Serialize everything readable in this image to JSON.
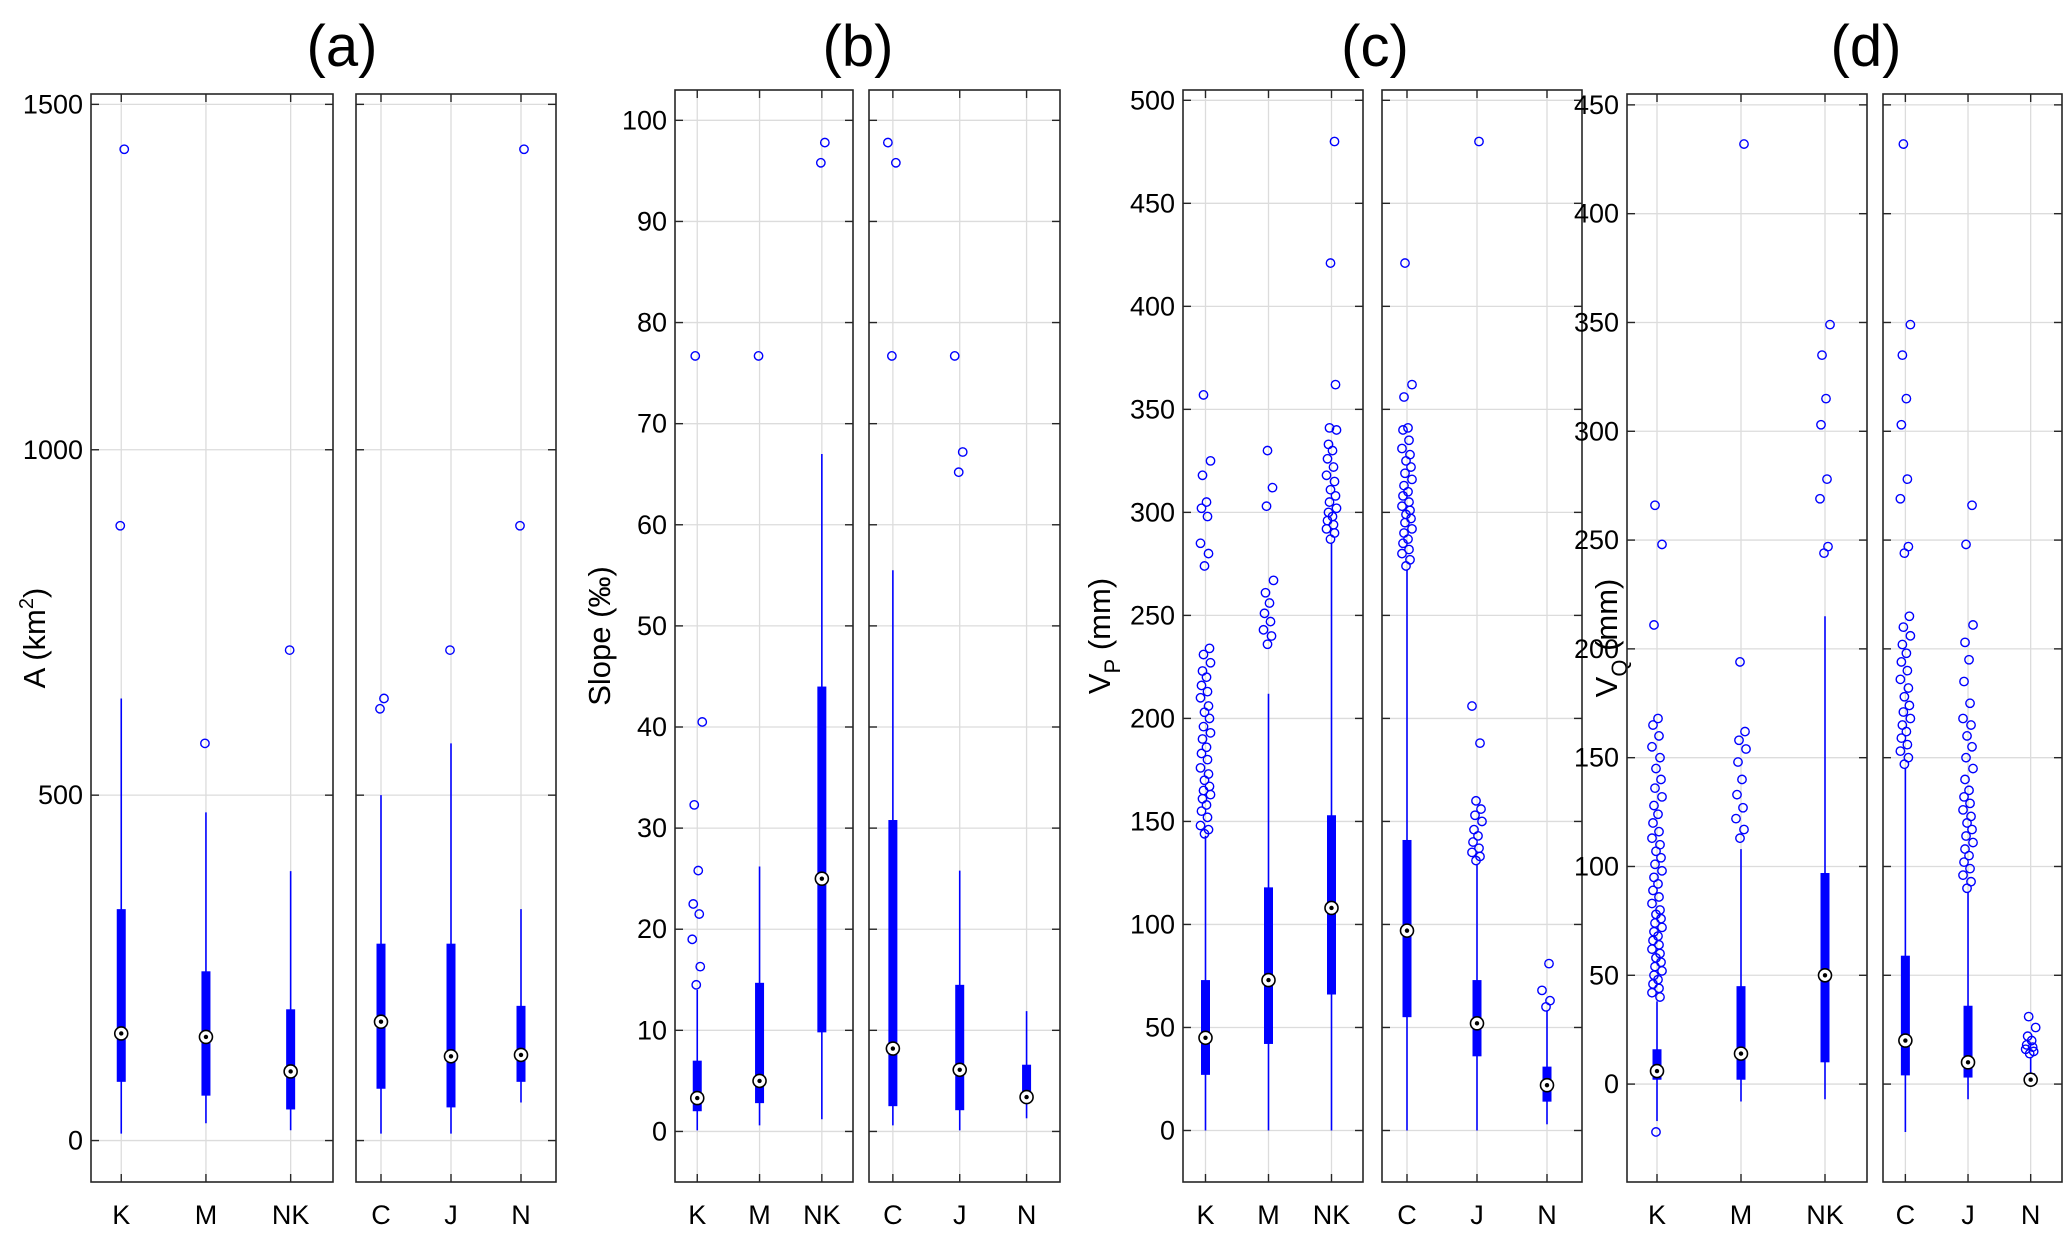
{
  "chart_data": [
    {
      "type": "box",
      "title": "(a)",
      "ylabel": {
        "main": "A (km",
        "sup": "2",
        "end": ")"
      },
      "ylim": [
        -60,
        1515
      ],
      "yticks": [
        0,
        500,
        1000,
        1500
      ],
      "grid": true,
      "color": "#0000ff",
      "groups": [
        {
          "categories": [
            "K",
            "M",
            "NK"
          ],
          "boxes": [
            {
              "q1": 85,
              "median": 155,
              "q3": 335,
              "whisker_low": 10,
              "whisker_high": 640,
              "outliers": [
                890,
                1435
              ]
            },
            {
              "q1": 65,
              "median": 150,
              "q3": 245,
              "whisker_low": 25,
              "whisker_high": 475,
              "outliers": [
                575
              ]
            },
            {
              "q1": 45,
              "median": 100,
              "q3": 190,
              "whisker_low": 15,
              "whisker_high": 390,
              "outliers": [
                710
              ]
            }
          ]
        },
        {
          "categories": [
            "C",
            "J",
            "N"
          ],
          "boxes": [
            {
              "q1": 75,
              "median": 172,
              "q3": 285,
              "whisker_low": 10,
              "whisker_high": 500,
              "outliers": [
                625,
                640
              ]
            },
            {
              "q1": 48,
              "median": 122,
              "q3": 285,
              "whisker_low": 10,
              "whisker_high": 575,
              "outliers": [
                710
              ]
            },
            {
              "q1": 85,
              "median": 124,
              "q3": 195,
              "whisker_low": 55,
              "whisker_high": 335,
              "outliers": [
                890,
                1435
              ]
            }
          ]
        }
      ]
    },
    {
      "type": "box",
      "title": "(b)",
      "ylabel": {
        "main": "Slope (‰)"
      },
      "ylim": [
        -5,
        103
      ],
      "yticks": [
        0,
        10,
        20,
        30,
        40,
        50,
        60,
        70,
        80,
        90,
        100
      ],
      "grid": true,
      "color": "#0000ff",
      "groups": [
        {
          "categories": [
            "K",
            "M",
            "NK"
          ],
          "boxes": [
            {
              "q1": 2,
              "median": 3.3,
              "q3": 7,
              "whisker_low": 0.1,
              "whisker_high": 14,
              "outliers": [
                14.5,
                16.3,
                19,
                21.5,
                22.5,
                25.8,
                32.3,
                40.5,
                76.7
              ]
            },
            {
              "q1": 2.8,
              "median": 5,
              "q3": 14.7,
              "whisker_low": 0.6,
              "whisker_high": 26.2,
              "outliers": [
                76.7
              ]
            },
            {
              "q1": 9.8,
              "median": 25,
              "q3": 44,
              "whisker_low": 1.2,
              "whisker_high": 67,
              "outliers": [
                95.8,
                97.8
              ]
            }
          ]
        },
        {
          "categories": [
            "C",
            "J",
            "N"
          ],
          "boxes": [
            {
              "q1": 2.5,
              "median": 8.2,
              "q3": 30.8,
              "whisker_low": 0.6,
              "whisker_high": 55.5,
              "outliers": [
                76.7,
                95.8,
                97.8
              ]
            },
            {
              "q1": 2.1,
              "median": 6.1,
              "q3": 14.5,
              "whisker_low": 0.1,
              "whisker_high": 25.8,
              "outliers": [
                65.2,
                67.2,
                76.7
              ]
            },
            {
              "q1": 2.9,
              "median": 3.4,
              "q3": 6.6,
              "whisker_low": 1.3,
              "whisker_high": 11.9,
              "outliers": []
            }
          ]
        }
      ]
    },
    {
      "type": "box",
      "title": "(c)",
      "ylabel": {
        "main": "V",
        "sub": "P",
        "end": " (mm)"
      },
      "ylim": [
        -25,
        505
      ],
      "yticks": [
        0,
        50,
        100,
        150,
        200,
        250,
        300,
        350,
        400,
        450,
        500
      ],
      "grid": true,
      "color": "#0000ff",
      "groups": [
        {
          "categories": [
            "K",
            "M",
            "NK"
          ],
          "boxes": [
            {
              "q1": 27,
              "median": 45,
              "q3": 73,
              "whisker_low": 0,
              "whisker_high": 143,
              "outliers": [
                144,
                146,
                148,
                152,
                155,
                158,
                161,
                163,
                165,
                167,
                170,
                173,
                176,
                180,
                183,
                186,
                190,
                193,
                196,
                200,
                203,
                206,
                210,
                213,
                216,
                220,
                223,
                227,
                231,
                234,
                274,
                280,
                285,
                298,
                302,
                305,
                318,
                325,
                357
              ]
            },
            {
              "q1": 42,
              "median": 73,
              "q3": 118,
              "whisker_low": 0,
              "whisker_high": 212,
              "outliers": [
                236,
                240,
                243,
                247,
                251,
                256,
                261,
                267,
                303,
                312,
                330
              ]
            },
            {
              "q1": 66,
              "median": 108,
              "q3": 153,
              "whisker_low": 0,
              "whisker_high": 285,
              "outliers": [
                287,
                290,
                292,
                294,
                296,
                298,
                300,
                302,
                305,
                308,
                311,
                315,
                318,
                322,
                326,
                330,
                333,
                340,
                341,
                362,
                421,
                480
              ]
            }
          ]
        },
        {
          "categories": [
            "C",
            "J",
            "N"
          ],
          "boxes": [
            {
              "q1": 55,
              "median": 97,
              "q3": 141,
              "whisker_low": 0,
              "whisker_high": 272,
              "outliers": [
                274,
                277,
                280,
                282,
                285,
                287,
                290,
                292,
                295,
                297,
                299,
                301,
                303,
                305,
                308,
                310,
                313,
                316,
                319,
                322,
                325,
                328,
                331,
                335,
                340,
                341,
                356,
                362,
                421
              ]
            },
            {
              "q1": 36,
              "median": 52,
              "q3": 73,
              "whisker_low": 0,
              "whisker_high": 129,
              "outliers": [
                131,
                133,
                135,
                137,
                140,
                143,
                146,
                150,
                153,
                156,
                160,
                188,
                206,
                480
              ]
            },
            {
              "q1": 14,
              "median": 22,
              "q3": 31,
              "whisker_low": 3,
              "whisker_high": 58,
              "outliers": [
                60,
                63,
                68,
                81
              ]
            }
          ]
        }
      ]
    },
    {
      "type": "box",
      "title": "(d)",
      "ylabel": {
        "main": "V",
        "sub": "Q",
        "end": " (mm)"
      },
      "ylim": [
        -45,
        455
      ],
      "yticks": [
        0,
        50,
        100,
        150,
        200,
        250,
        300,
        350,
        400,
        450
      ],
      "grid": true,
      "color": "#0000ff",
      "groups": [
        {
          "categories": [
            "K",
            "M",
            "NK"
          ],
          "boxes": [
            {
              "q1": 2,
              "median": 6,
              "q3": 16,
              "whisker_low": -17,
              "whisker_high": 38,
              "outliers": [
                -22,
                40,
                42,
                44,
                46,
                48,
                50,
                52,
                54,
                56,
                58,
                60,
                62,
                64,
                66,
                68,
                70,
                72,
                74,
                76,
                78,
                80,
                83,
                86,
                89,
                92,
                95,
                98,
                101,
                104,
                107,
                110,
                113,
                116,
                120,
                124,
                128,
                132,
                136,
                140,
                145,
                150,
                155,
                160,
                165,
                168,
                211,
                248,
                266
              ]
            },
            {
              "q1": 2,
              "median": 14,
              "q3": 45,
              "whisker_low": -8,
              "whisker_high": 108,
              "outliers": [
                113,
                117,
                122,
                127,
                133,
                140,
                148,
                154,
                158,
                162,
                194,
                432
              ]
            },
            {
              "q1": 10,
              "median": 50,
              "q3": 97,
              "whisker_low": -7,
              "whisker_high": 215,
              "outliers": [
                244,
                247,
                269,
                278,
                303,
                315,
                335,
                349
              ]
            }
          ]
        },
        {
          "categories": [
            "C",
            "J",
            "N"
          ],
          "boxes": [
            {
              "q1": 4,
              "median": 20,
              "q3": 59,
              "whisker_low": -22,
              "whisker_high": 145,
              "outliers": [
                147,
                150,
                153,
                156,
                159,
                162,
                165,
                168,
                171,
                174,
                178,
                182,
                186,
                190,
                194,
                198,
                202,
                206,
                210,
                215,
                244,
                247,
                269,
                278,
                303,
                315,
                335,
                349,
                432
              ]
            },
            {
              "q1": 3,
              "median": 10,
              "q3": 36,
              "whisker_low": -7,
              "whisker_high": 88,
              "outliers": [
                90,
                93,
                96,
                99,
                102,
                105,
                108,
                111,
                114,
                117,
                120,
                123,
                126,
                129,
                132,
                135,
                140,
                145,
                150,
                155,
                160,
                165,
                168,
                175,
                185,
                195,
                203,
                211,
                248,
                266
              ]
            },
            {
              "q1": 1,
              "median": 2,
              "q3": 5,
              "whisker_low": 0,
              "whisker_high": 12,
              "outliers": [
                14,
                15,
                16,
                17,
                18,
                20,
                22,
                26,
                31
              ]
            }
          ]
        }
      ]
    }
  ]
}
